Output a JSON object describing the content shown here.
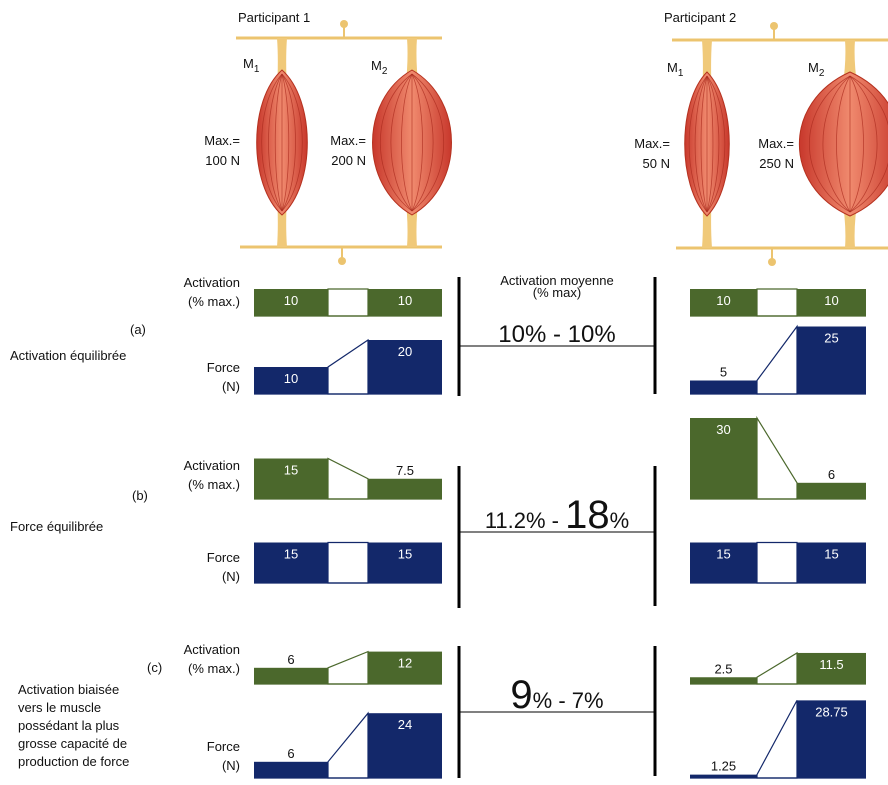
{
  "participants": [
    {
      "title": "Participant 1",
      "muscles": [
        {
          "name": "M",
          "sub": "1",
          "max_label": "Max.=",
          "max": "100 N"
        },
        {
          "name": "M",
          "sub": "2",
          "max_label": "Max.=",
          "max": "200 N"
        }
      ]
    },
    {
      "title": "Participant 2",
      "muscles": [
        {
          "name": "M",
          "sub": "1",
          "max_label": "Max.=",
          "max": "50 N"
        },
        {
          "name": "M",
          "sub": "2",
          "max_label": "Max.=",
          "max": "250 N"
        }
      ]
    }
  ],
  "middle_header": [
    "Activation moyenne",
    "(% max)"
  ],
  "rows": [
    {
      "label": "(a)",
      "description": [
        "Activation équilibrée"
      ],
      "activation_label": [
        "Activation",
        "(% max.)"
      ],
      "force_label": [
        "Force",
        "(N)"
      ],
      "mean": [
        {
          "text": "10% - 10%",
          "size": "large"
        }
      ],
      "participants": [
        {
          "activation": [
            10,
            10
          ],
          "force": [
            10,
            20
          ]
        },
        {
          "activation": [
            10,
            10
          ],
          "force": [
            5,
            25
          ]
        }
      ]
    },
    {
      "label": "(b)",
      "description": [
        "Force équilibrée"
      ],
      "activation_label": [
        "Activation",
        "(% max.)"
      ],
      "force_label": [
        "Force",
        "(N)"
      ],
      "mean": [
        {
          "text": "11.2% - ",
          "size": "normal"
        },
        {
          "text": "18",
          "size": "huge"
        },
        {
          "text": "%",
          "size": "normal"
        }
      ],
      "participants": [
        {
          "activation": [
            15,
            7.5
          ],
          "force": [
            15,
            15
          ]
        },
        {
          "activation": [
            30,
            6
          ],
          "force": [
            15,
            15
          ]
        }
      ]
    },
    {
      "label": "(c)",
      "description": [
        "Activation biaisée",
        "vers le muscle",
        "possédant la plus",
        "grosse capacité de",
        "production de force"
      ],
      "activation_label": [
        "Activation",
        "(% max.)"
      ],
      "force_label": [
        "Force",
        "(N)"
      ],
      "mean": [
        {
          "text": "9",
          "size": "huge"
        },
        {
          "text": "% - 7%",
          "size": "normal"
        }
      ],
      "participants": [
        {
          "activation": [
            6,
            12
          ],
          "force": [
            6,
            24
          ]
        },
        {
          "activation": [
            2.5,
            11.5
          ],
          "force": [
            1.25,
            28.75
          ]
        }
      ]
    }
  ]
}
